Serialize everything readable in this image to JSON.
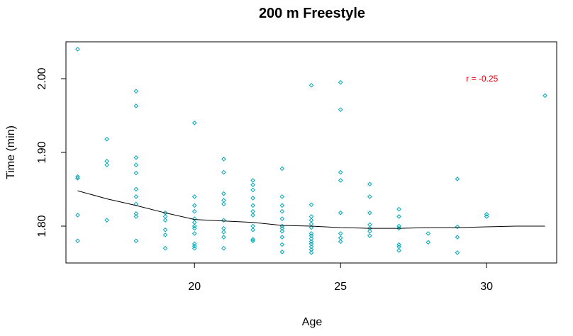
{
  "chart_data": {
    "type": "scatter",
    "title": "200 m Freestyle",
    "xlabel": "Age",
    "ylabel": "Time (min)",
    "xlim": [
      15.6,
      32.4
    ],
    "ylim": [
      1.75,
      2.05
    ],
    "xticks": [
      20,
      25,
      30
    ],
    "yticks": [
      1.8,
      1.9,
      2.0
    ],
    "xtick_labels": [
      "20",
      "25",
      "30"
    ],
    "ytick_labels": [
      "1.80",
      "1.90",
      "2.00"
    ],
    "grid": false,
    "annotation": {
      "text": "r =  -0.25",
      "x": 29.3,
      "y": 2.0
    },
    "colors": {
      "points": "#00a8b5",
      "smooth": "#000000",
      "annotation": "#e8000b"
    },
    "points": [
      [
        16,
        2.04
      ],
      [
        16,
        1.867
      ],
      [
        16,
        1.865
      ],
      [
        16,
        1.815
      ],
      [
        16,
        1.78
      ],
      [
        17,
        1.918
      ],
      [
        17,
        1.888
      ],
      [
        17,
        1.883
      ],
      [
        17,
        1.808
      ],
      [
        18,
        1.983
      ],
      [
        18,
        1.963
      ],
      [
        18,
        1.893
      ],
      [
        18,
        1.883
      ],
      [
        18,
        1.872
      ],
      [
        18,
        1.85
      ],
      [
        18,
        1.84
      ],
      [
        18,
        1.83
      ],
      [
        18,
        1.817
      ],
      [
        18,
        1.813
      ],
      [
        18,
        1.78
      ],
      [
        19,
        1.818
      ],
      [
        19,
        1.813
      ],
      [
        19,
        1.808
      ],
      [
        19,
        1.795
      ],
      [
        19,
        1.788
      ],
      [
        19,
        1.77
      ],
      [
        20,
        1.94
      ],
      [
        20,
        1.84
      ],
      [
        20,
        1.828
      ],
      [
        20,
        1.82
      ],
      [
        20,
        1.81
      ],
      [
        20,
        1.805
      ],
      [
        20,
        1.8
      ],
      [
        20,
        1.797
      ],
      [
        20,
        1.79
      ],
      [
        20,
        1.776
      ],
      [
        20,
        1.773
      ],
      [
        20,
        1.77
      ],
      [
        21,
        1.891
      ],
      [
        21,
        1.873
      ],
      [
        21,
        1.844
      ],
      [
        21,
        1.835
      ],
      [
        21,
        1.83
      ],
      [
        21,
        1.808
      ],
      [
        21,
        1.797
      ],
      [
        21,
        1.792
      ],
      [
        21,
        1.785
      ],
      [
        21,
        1.77
      ],
      [
        22,
        1.862
      ],
      [
        22,
        1.856
      ],
      [
        22,
        1.849
      ],
      [
        22,
        1.838
      ],
      [
        22,
        1.828
      ],
      [
        22,
        1.82
      ],
      [
        22,
        1.815
      ],
      [
        22,
        1.8
      ],
      [
        22,
        1.795
      ],
      [
        22,
        1.782
      ],
      [
        22,
        1.78
      ],
      [
        23,
        1.878
      ],
      [
        23,
        1.84
      ],
      [
        23,
        1.828
      ],
      [
        23,
        1.82
      ],
      [
        23,
        1.81
      ],
      [
        23,
        1.8
      ],
      [
        23,
        1.797
      ],
      [
        23,
        1.793
      ],
      [
        23,
        1.785
      ],
      [
        23,
        1.775
      ],
      [
        23,
        1.765
      ],
      [
        24,
        1.991
      ],
      [
        24,
        1.829
      ],
      [
        24,
        1.813
      ],
      [
        24,
        1.808
      ],
      [
        24,
        1.803
      ],
      [
        24,
        1.798
      ],
      [
        24,
        1.79
      ],
      [
        24,
        1.787
      ],
      [
        24,
        1.783
      ],
      [
        24,
        1.779
      ],
      [
        24,
        1.776
      ],
      [
        24,
        1.772
      ],
      [
        24,
        1.768
      ],
      [
        24,
        1.764
      ],
      [
        25,
        1.995
      ],
      [
        25,
        1.958
      ],
      [
        25,
        1.873
      ],
      [
        25,
        1.862
      ],
      [
        25,
        1.818
      ],
      [
        25,
        1.79
      ],
      [
        25,
        1.784
      ],
      [
        25,
        1.779
      ],
      [
        26,
        1.857
      ],
      [
        26,
        1.84
      ],
      [
        26,
        1.818
      ],
      [
        26,
        1.802
      ],
      [
        26,
        1.797
      ],
      [
        26,
        1.793
      ],
      [
        26,
        1.787
      ],
      [
        27,
        1.823
      ],
      [
        27,
        1.813
      ],
      [
        27,
        1.8
      ],
      [
        27,
        1.797
      ],
      [
        27,
        1.775
      ],
      [
        27,
        1.772
      ],
      [
        27,
        1.767
      ],
      [
        28,
        1.79
      ],
      [
        28,
        1.778
      ],
      [
        29,
        1.864
      ],
      [
        29,
        1.799
      ],
      [
        29,
        1.785
      ],
      [
        29,
        1.764
      ],
      [
        30,
        1.816
      ],
      [
        30,
        1.813
      ],
      [
        32,
        1.977
      ]
    ],
    "smooth_line": [
      [
        16,
        1.848
      ],
      [
        17,
        1.837
      ],
      [
        18,
        1.828
      ],
      [
        19,
        1.818
      ],
      [
        20,
        1.809
      ],
      [
        21,
        1.807
      ],
      [
        22,
        1.805
      ],
      [
        23,
        1.801
      ],
      [
        24,
        1.8
      ],
      [
        25,
        1.798
      ],
      [
        26,
        1.797
      ],
      [
        27,
        1.797
      ],
      [
        28,
        1.798
      ],
      [
        29,
        1.798
      ],
      [
        30,
        1.799
      ],
      [
        31,
        1.8
      ],
      [
        32,
        1.8
      ]
    ]
  }
}
